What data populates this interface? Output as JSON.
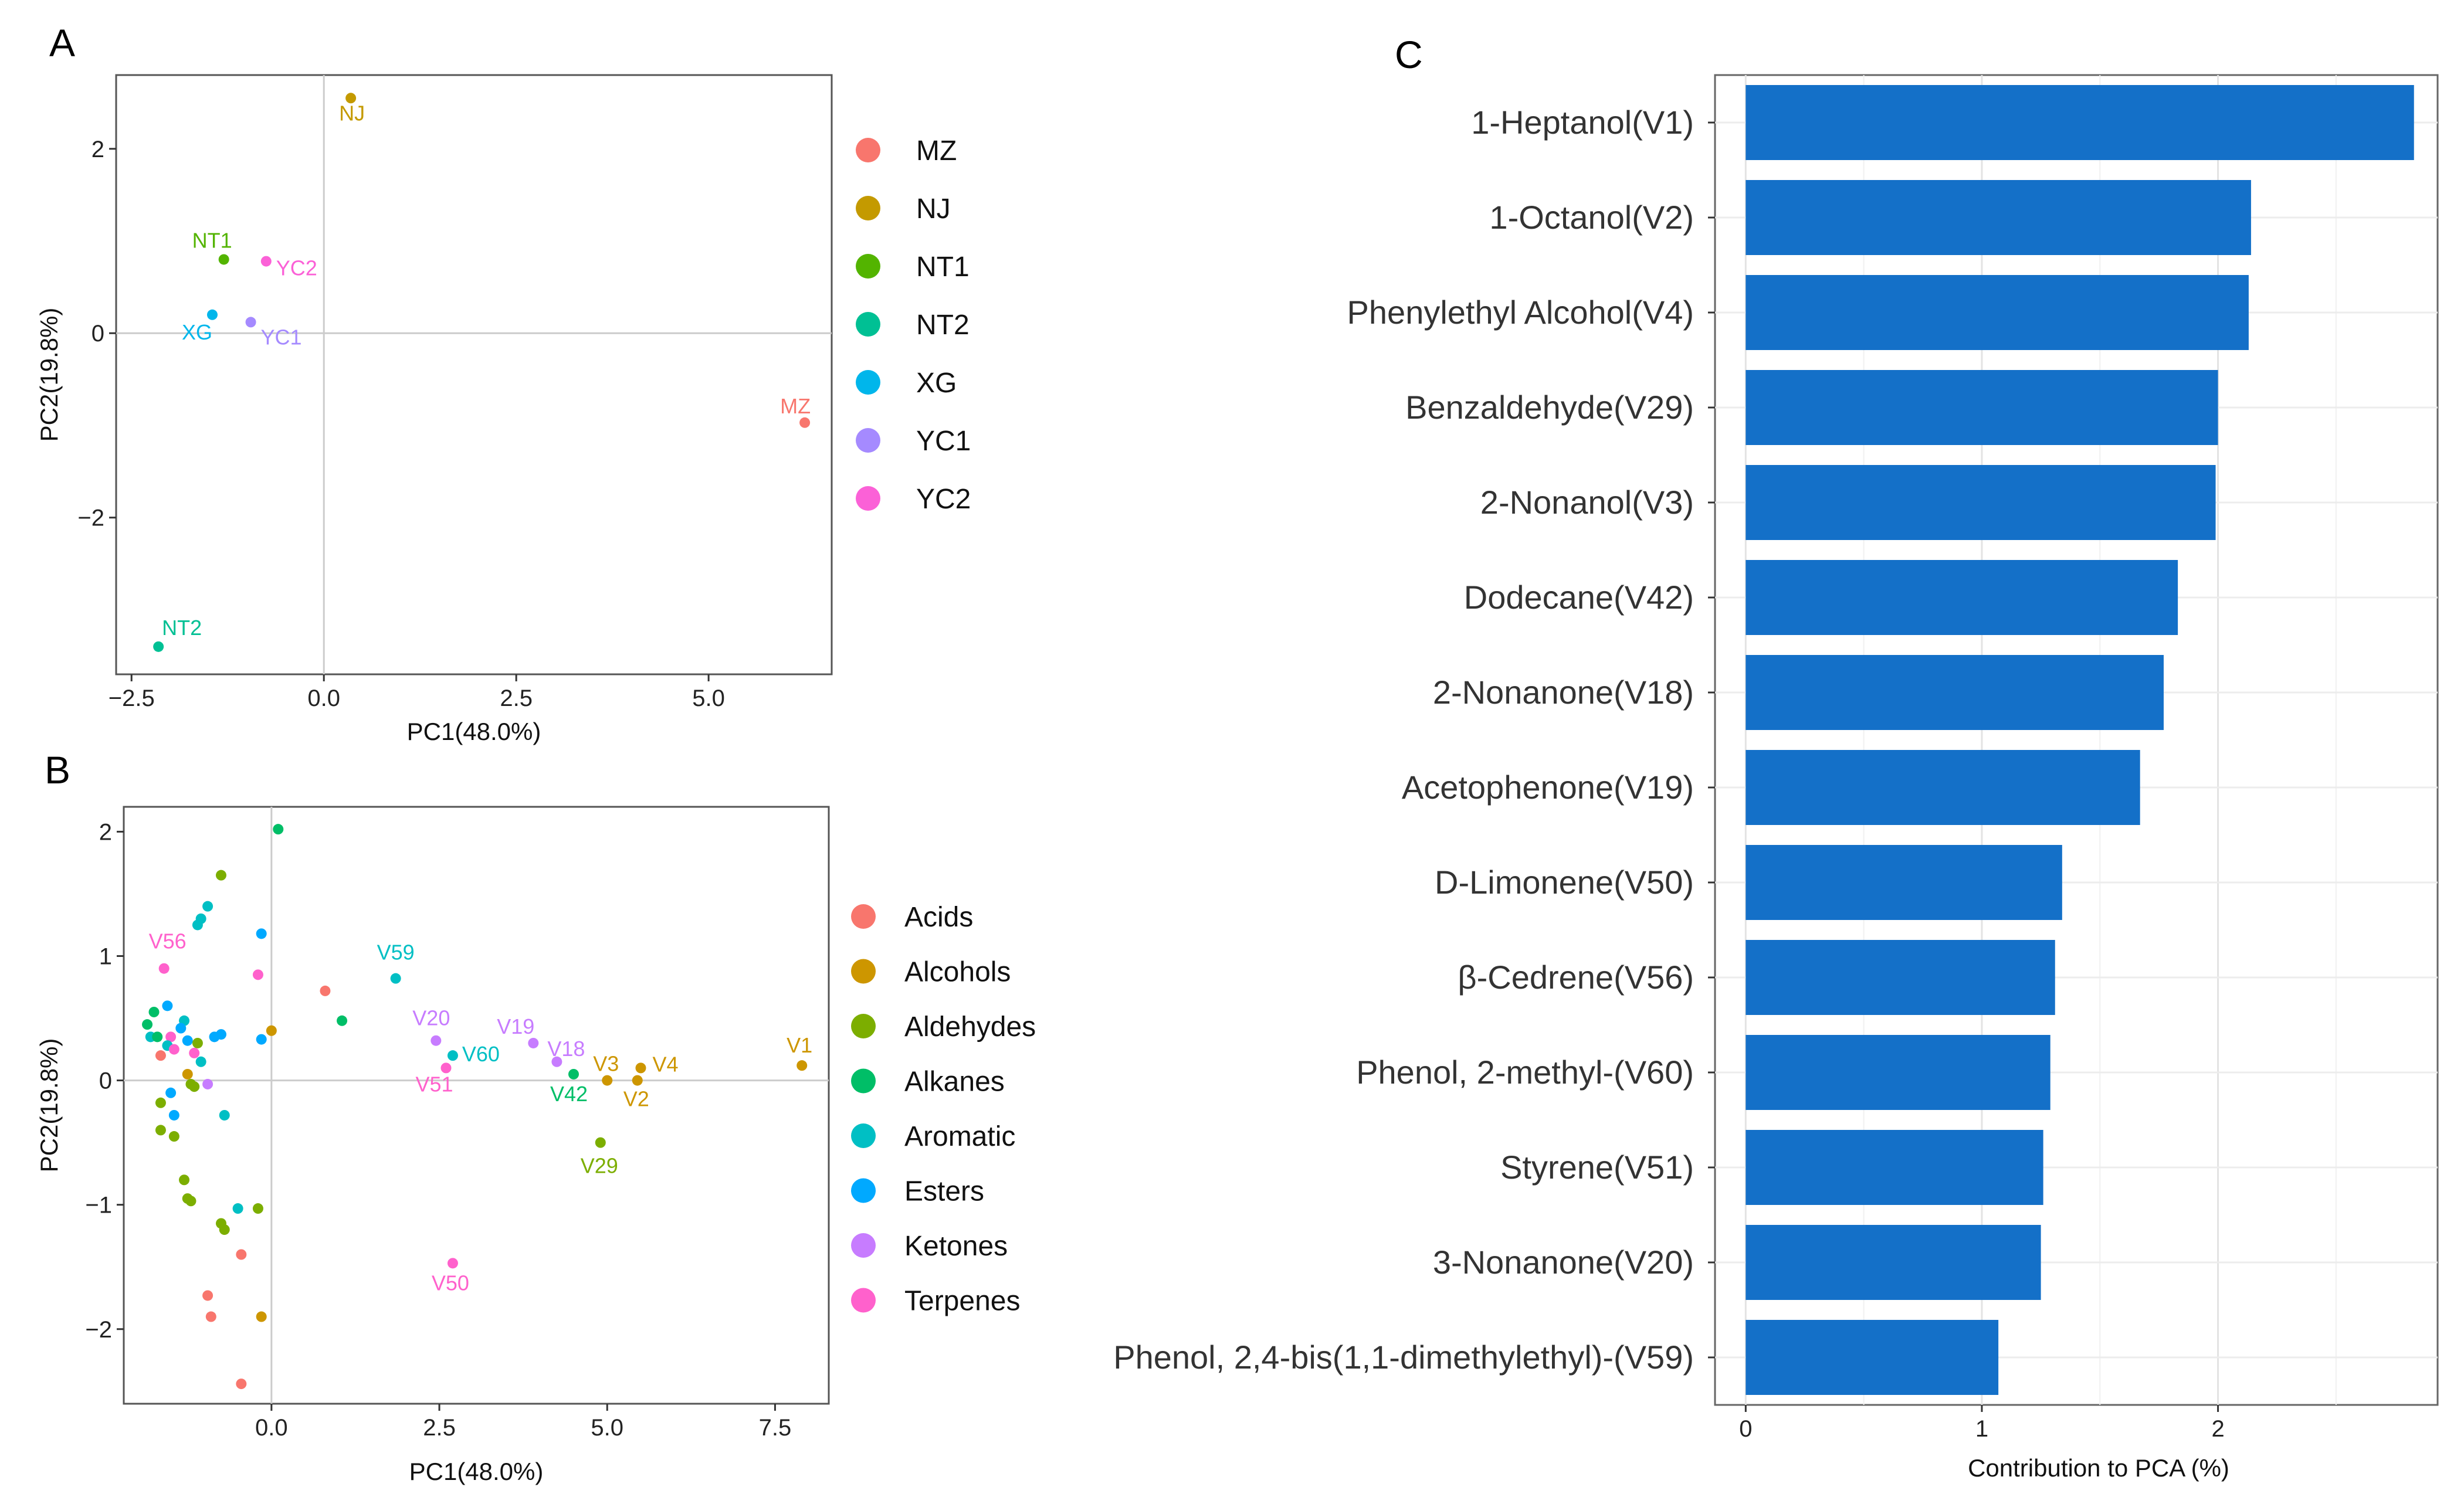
{
  "panel_labels": {
    "a": "A",
    "b": "B",
    "c": "C"
  },
  "chart_data": [
    {
      "panel": "A",
      "type": "scatter",
      "title": "",
      "xlabel": "PC1(48.0%)",
      "ylabel": "PC2(19.8%)",
      "xlim": [
        -2.7,
        6.6
      ],
      "ylim": [
        -3.7,
        2.8
      ],
      "xticks": [
        -2.5,
        0.0,
        2.5,
        5.0
      ],
      "xtick_labels": [
        "−2.5",
        "0.0",
        "2.5",
        "5.0"
      ],
      "yticks": [
        -2,
        0,
        2
      ],
      "ytick_labels": [
        "−2",
        "0",
        "2"
      ],
      "grid": false,
      "legend": {
        "position": "right",
        "entries": [
          {
            "name": "MZ",
            "color": "#F8766D"
          },
          {
            "name": "NJ",
            "color": "#C49A00"
          },
          {
            "name": "NT1",
            "color": "#53B400"
          },
          {
            "name": "NT2",
            "color": "#00C094"
          },
          {
            "name": "XG",
            "color": "#00B6EB"
          },
          {
            "name": "YC1",
            "color": "#A58AFF"
          },
          {
            "name": "YC2",
            "color": "#FB61D7"
          }
        ]
      },
      "points": [
        {
          "label": "MZ",
          "group": "MZ",
          "x": 6.25,
          "y": -0.97
        },
        {
          "label": "NJ",
          "group": "NJ",
          "x": 0.35,
          "y": 2.55
        },
        {
          "label": "NT1",
          "group": "NT1",
          "x": -1.3,
          "y": 0.8
        },
        {
          "label": "NT2",
          "group": "NT2",
          "x": -2.15,
          "y": -3.4
        },
        {
          "label": "XG",
          "group": "XG",
          "x": -1.45,
          "y": 0.2
        },
        {
          "label": "YC1",
          "group": "YC1",
          "x": -0.95,
          "y": 0.12
        },
        {
          "label": "YC2",
          "group": "YC2",
          "x": -0.75,
          "y": 0.78
        }
      ]
    },
    {
      "panel": "B",
      "type": "scatter",
      "title": "",
      "xlabel": "PC1(48.0%)",
      "ylabel": "PC2(19.8%)",
      "xlim": [
        -2.2,
        8.3
      ],
      "ylim": [
        -2.6,
        2.2
      ],
      "xticks": [
        0.0,
        2.5,
        5.0,
        7.5
      ],
      "xtick_labels": [
        "0.0",
        "2.5",
        "5.0",
        "7.5"
      ],
      "yticks": [
        -2,
        -1,
        0,
        1,
        2
      ],
      "ytick_labels": [
        "−2",
        "−1",
        "0",
        "1",
        "2"
      ],
      "grid": false,
      "legend": {
        "position": "right",
        "entries": [
          {
            "name": "Acids",
            "color": "#F8766D"
          },
          {
            "name": "Alcohols",
            "color": "#CD9600"
          },
          {
            "name": "Aldehydes",
            "color": "#7CAE00"
          },
          {
            "name": "Alkanes",
            "color": "#00BE67"
          },
          {
            "name": "Aromatic",
            "color": "#00BFC4"
          },
          {
            "name": "Esters",
            "color": "#00A9FF"
          },
          {
            "name": "Ketones",
            "color": "#C77CFF"
          },
          {
            "name": "Terpenes",
            "color": "#FF61CC"
          }
        ]
      },
      "labeled_points": [
        {
          "label": "V1",
          "group": "Alcohols",
          "x": 7.9,
          "y": 0.12
        },
        {
          "label": "V4",
          "group": "Alcohols",
          "x": 5.5,
          "y": 0.1
        },
        {
          "label": "V2",
          "group": "Alcohols",
          "x": 5.45,
          "y": 0.0
        },
        {
          "label": "V3",
          "group": "Alcohols",
          "x": 5.0,
          "y": 0.0
        },
        {
          "label": "V29",
          "group": "Aldehydes",
          "x": 4.9,
          "y": -0.5
        },
        {
          "label": "V42",
          "group": "Alkanes",
          "x": 4.5,
          "y": 0.05
        },
        {
          "label": "V18",
          "group": "Ketones",
          "x": 4.25,
          "y": 0.15
        },
        {
          "label": "V19",
          "group": "Ketones",
          "x": 3.9,
          "y": 0.3
        },
        {
          "label": "V59",
          "group": "Aromatic",
          "x": 1.85,
          "y": 0.82
        },
        {
          "label": "V60",
          "group": "Aromatic",
          "x": 2.7,
          "y": 0.2
        },
        {
          "label": "V20",
          "group": "Ketones",
          "x": 2.45,
          "y": 0.32
        },
        {
          "label": "V51",
          "group": "Terpenes",
          "x": 2.6,
          "y": 0.1
        },
        {
          "label": "V50",
          "group": "Terpenes",
          "x": 2.7,
          "y": -1.47
        },
        {
          "label": "V56",
          "group": "Terpenes",
          "x": -1.6,
          "y": 0.9
        }
      ],
      "other_points": [
        {
          "group": "Alkanes",
          "x": 0.1,
          "y": 2.02
        },
        {
          "group": "Aldehydes",
          "x": -0.75,
          "y": 1.65
        },
        {
          "group": "Aromatic",
          "x": -0.95,
          "y": 1.4
        },
        {
          "group": "Aromatic",
          "x": -1.1,
          "y": 1.25
        },
        {
          "group": "Aromatic",
          "x": -1.05,
          "y": 1.3
        },
        {
          "group": "Esters",
          "x": -0.15,
          "y": 1.18
        },
        {
          "group": "Terpenes",
          "x": -0.2,
          "y": 0.85
        },
        {
          "group": "Acids",
          "x": 0.8,
          "y": 0.72
        },
        {
          "group": "Alkanes",
          "x": 1.05,
          "y": 0.48
        },
        {
          "group": "Alcohols",
          "x": 0.0,
          "y": 0.4
        },
        {
          "group": "Esters",
          "x": -0.15,
          "y": 0.33
        },
        {
          "group": "Alkanes",
          "x": -1.85,
          "y": 0.45
        },
        {
          "group": "Alkanes",
          "x": -1.75,
          "y": 0.55
        },
        {
          "group": "Esters",
          "x": -1.55,
          "y": 0.6
        },
        {
          "group": "Aromatic",
          "x": -1.3,
          "y": 0.48
        },
        {
          "group": "Esters",
          "x": -1.35,
          "y": 0.42
        },
        {
          "group": "Aromatic",
          "x": -1.8,
          "y": 0.35
        },
        {
          "group": "Alkanes",
          "x": -1.7,
          "y": 0.35
        },
        {
          "group": "Terpenes",
          "x": -1.5,
          "y": 0.35
        },
        {
          "group": "Esters",
          "x": -1.25,
          "y": 0.32
        },
        {
          "group": "Esters",
          "x": -0.85,
          "y": 0.35
        },
        {
          "group": "Esters",
          "x": -0.75,
          "y": 0.37
        },
        {
          "group": "Aldehydes",
          "x": -1.1,
          "y": 0.3
        },
        {
          "group": "Aromatic",
          "x": -1.55,
          "y": 0.28
        },
        {
          "group": "Terpenes",
          "x": -1.45,
          "y": 0.25
        },
        {
          "group": "Terpenes",
          "x": -1.15,
          "y": 0.22
        },
        {
          "group": "Acids",
          "x": -1.65,
          "y": 0.2
        },
        {
          "group": "Aromatic",
          "x": -1.05,
          "y": 0.15
        },
        {
          "group": "Alcohols",
          "x": -1.25,
          "y": 0.05
        },
        {
          "group": "Aldehydes",
          "x": -1.2,
          "y": -0.03
        },
        {
          "group": "Aldehydes",
          "x": -1.15,
          "y": -0.05
        },
        {
          "group": "Ketones",
          "x": -0.95,
          "y": -0.03
        },
        {
          "group": "Esters",
          "x": -1.5,
          "y": -0.1
        },
        {
          "group": "Aldehydes",
          "x": -1.65,
          "y": -0.18
        },
        {
          "group": "Esters",
          "x": -1.45,
          "y": -0.28
        },
        {
          "group": "Aromatic",
          "x": -0.7,
          "y": -0.28
        },
        {
          "group": "Aldehydes",
          "x": -1.65,
          "y": -0.4
        },
        {
          "group": "Aldehydes",
          "x": -1.45,
          "y": -0.45
        },
        {
          "group": "Aldehydes",
          "x": -1.3,
          "y": -0.8
        },
        {
          "group": "Aldehydes",
          "x": -1.25,
          "y": -0.95
        },
        {
          "group": "Aldehydes",
          "x": -1.2,
          "y": -0.97
        },
        {
          "group": "Aromatic",
          "x": -0.5,
          "y": -1.03
        },
        {
          "group": "Aldehydes",
          "x": -0.2,
          "y": -1.03
        },
        {
          "group": "Aldehydes",
          "x": -0.75,
          "y": -1.15
        },
        {
          "group": "Aldehydes",
          "x": -0.7,
          "y": -1.2
        },
        {
          "group": "Acids",
          "x": -0.45,
          "y": -1.4
        },
        {
          "group": "Acids",
          "x": -0.95,
          "y": -1.73
        },
        {
          "group": "Acids",
          "x": -0.9,
          "y": -1.9
        },
        {
          "group": "Alcohols",
          "x": -0.15,
          "y": -1.9
        },
        {
          "group": "Acids",
          "x": -0.45,
          "y": -2.44
        }
      ]
    },
    {
      "panel": "C",
      "type": "bar",
      "orientation": "horizontal",
      "title": "",
      "xlabel": "Contribution to PCA (%)",
      "ylabel": "",
      "xlim": [
        -0.13,
        2.93
      ],
      "xticks": [
        0,
        1,
        2
      ],
      "xtick_labels": [
        "0",
        "1",
        "2"
      ],
      "grid": true,
      "bar_color": "#1470C8",
      "categories": [
        "1-Heptanol(V1)",
        "1-Octanol(V2)",
        "Phenylethyl Alcohol(V4)",
        "Benzaldehyde(V29)",
        "2-Nonanol(V3)",
        "Dodecane(V42)",
        "2-Nonanone(V18)",
        "Acetophenone(V19)",
        "D-Limonene(V50)",
        "β-Cedrene(V56)",
        "Phenol, 2-methyl-(V60)",
        "Styrene(V51)",
        "3-Nonanone(V20)",
        "Phenol, 2,4-bis(1,1-dimethylethyl)-(V59)"
      ],
      "values": [
        2.83,
        2.14,
        2.13,
        2.0,
        1.99,
        1.83,
        1.77,
        1.67,
        1.34,
        1.31,
        1.29,
        1.26,
        1.25,
        1.07
      ]
    }
  ]
}
